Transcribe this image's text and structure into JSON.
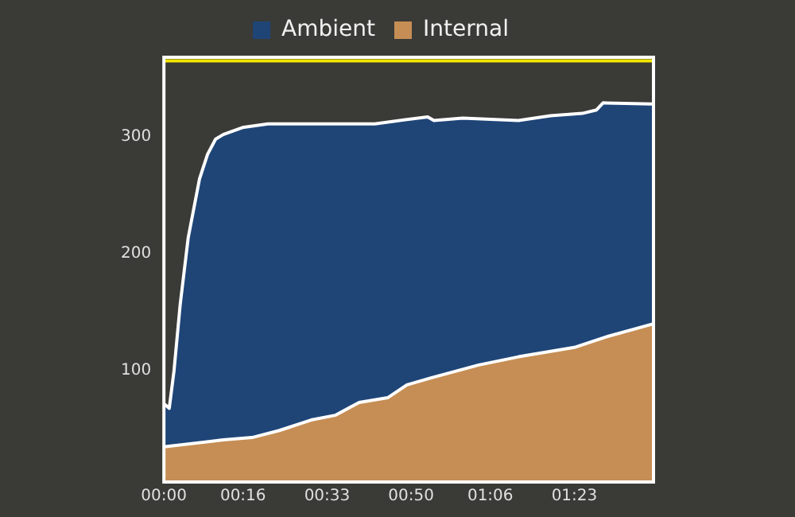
{
  "chart_data": {
    "type": "area",
    "xlim": [
      0,
      1.65
    ],
    "xticks": [
      {
        "value": 0,
        "label": "00:00"
      },
      {
        "value": 0.2667,
        "label": "00:16"
      },
      {
        "value": 0.55,
        "label": "00:33"
      },
      {
        "value": 0.8333,
        "label": "00:50"
      },
      {
        "value": 1.1,
        "label": "01:06"
      },
      {
        "value": 1.3833,
        "label": "01:23"
      }
    ],
    "ylim": [
      5,
      368
    ],
    "yticks": [
      100,
      200,
      300
    ],
    "grid": false,
    "legend": "top",
    "ref_lines": [
      {
        "axis": "y",
        "value": 365,
        "color": "#f2e600"
      }
    ],
    "series": [
      {
        "name": "Ambient",
        "color": "#1f4577",
        "x": [
          0,
          0.018,
          0.034,
          0.055,
          0.082,
          0.12,
          0.147,
          0.174,
          0.2,
          0.265,
          0.351,
          0.711,
          0.765,
          0.889,
          0.91,
          1.007,
          1.195,
          1.303,
          1.41,
          1.458,
          1.48,
          1.647
        ],
        "values": [
          72,
          68,
          100,
          157,
          214,
          264,
          285,
          298,
          302,
          308,
          311,
          311,
          313,
          317,
          314,
          316,
          314,
          318,
          320,
          323,
          329,
          328
        ]
      },
      {
        "name": "Internal",
        "color": "#c68e55",
        "x": [
          0,
          0.2,
          0.297,
          0.389,
          0.496,
          0.577,
          0.658,
          0.754,
          0.819,
          0.9,
          1.061,
          1.195,
          1.383,
          1.49,
          1.647
        ],
        "values": [
          35,
          41,
          43,
          49,
          58,
          62,
          73,
          77,
          88,
          94,
          105,
          112,
          120,
          129,
          140
        ]
      }
    ]
  }
}
